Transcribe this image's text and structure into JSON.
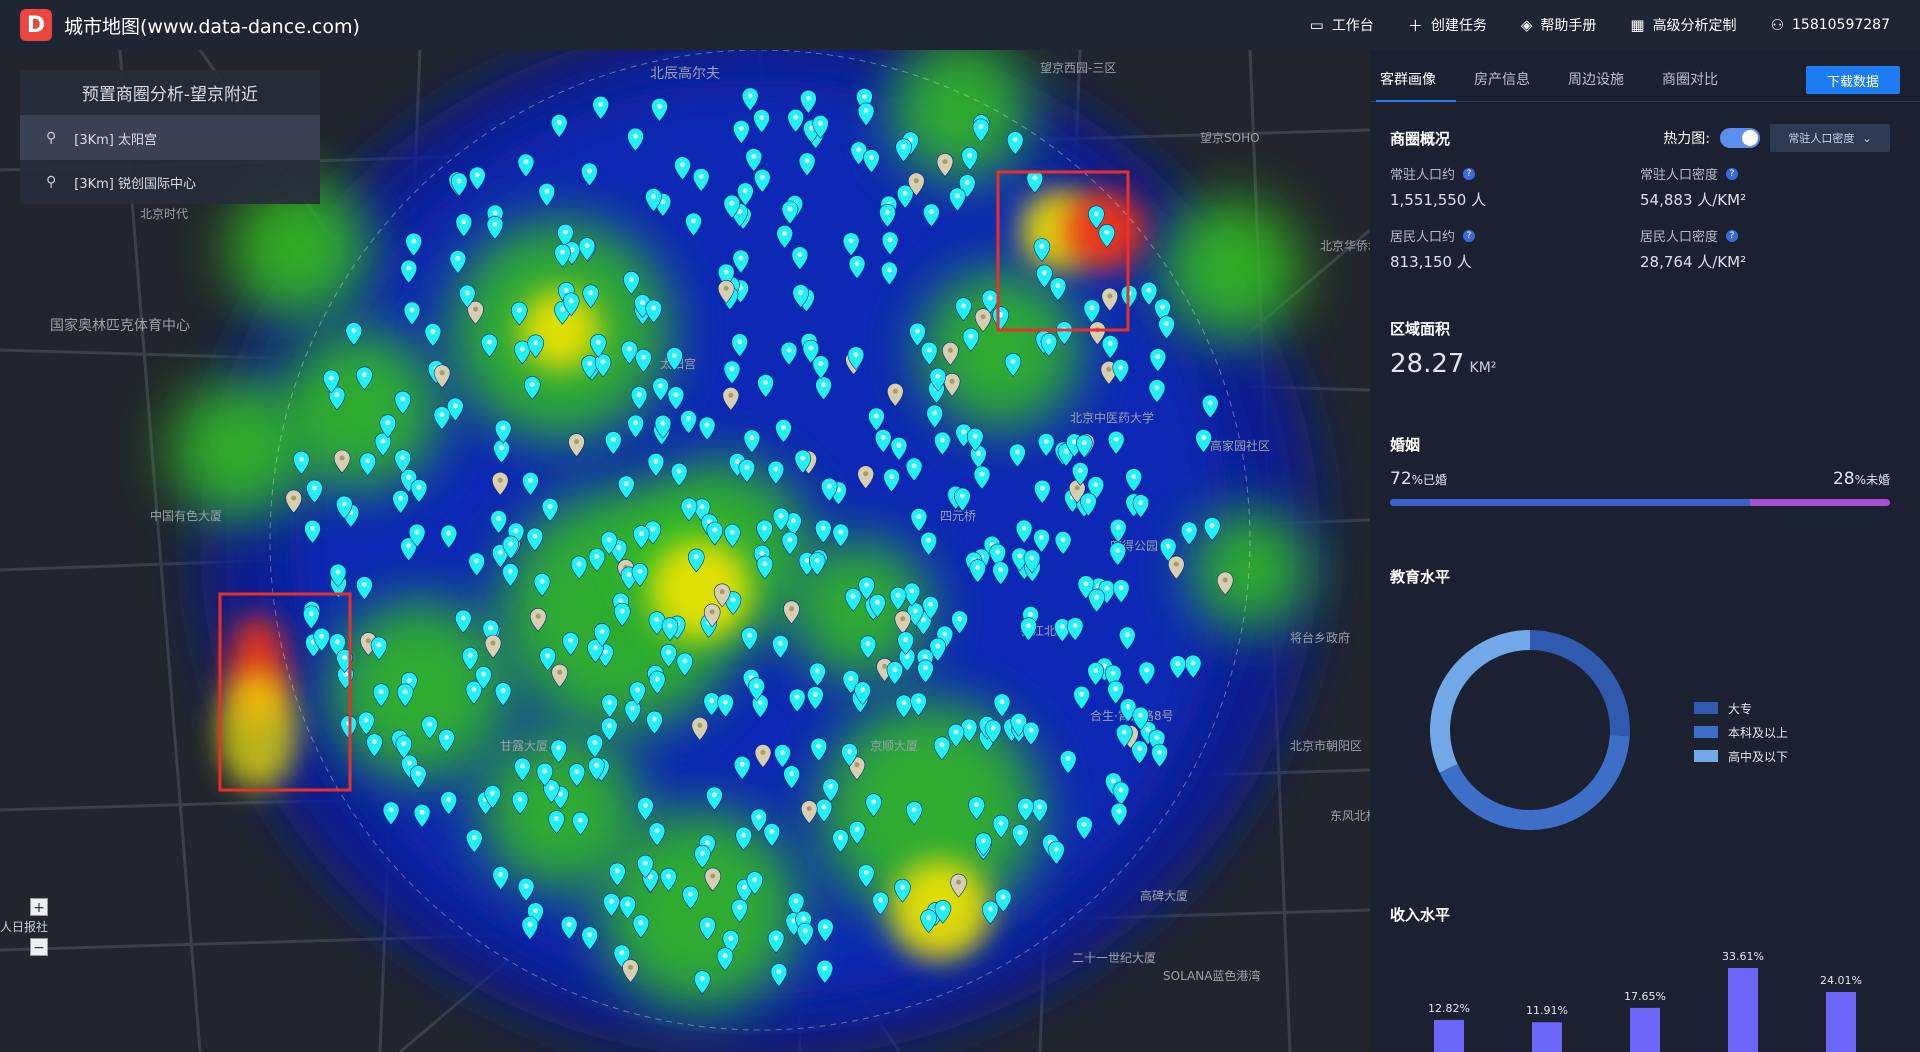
{
  "app": {
    "logo_letter": "D",
    "title": "城市地图(www.data-dance.com)"
  },
  "nav": [
    {
      "icon": "monitor-icon",
      "label": "工作台"
    },
    {
      "icon": "plus-icon",
      "label": "创建任务"
    },
    {
      "icon": "layers-icon",
      "label": "帮助手册"
    },
    {
      "icon": "calendar-icon",
      "label": "高级分析定制"
    },
    {
      "icon": "user-icon",
      "label": "15810597287"
    }
  ],
  "preset": {
    "title": "预置商圈分析-望京附近",
    "items": [
      {
        "label": "[3Km] 太阳宫",
        "active": true
      },
      {
        "label": "[3Km] 锐创国际中心",
        "active": false
      }
    ]
  },
  "map_labels": [
    "北辰高尔夫",
    "望京西园-三区",
    "望京SOHO",
    "国家奥林匹克体育中心",
    "太阳宫",
    "四元桥",
    "京顺大厦",
    "合生·霄云路8号",
    "高家园社区",
    "将台乡政府",
    "北京市朝阳区",
    "二十一世纪大厦",
    "SOLANA蓝色港湾",
    "高碑大厦",
    "东风北桥",
    "四得公园",
    "北京中医药大学",
    "香江北路",
    "中国有色大厦",
    "北京时代",
    "甘露大厦",
    "北京华侨城"
  ],
  "zoom": {
    "plus": "+",
    "minus": "−",
    "scale_label": "人日报社"
  },
  "tabs": [
    "客群画像",
    "房产信息",
    "周边设施",
    "商圈对比"
  ],
  "download_label": "下载数据",
  "overview": {
    "title": "商圈概况",
    "heat_label": "热力图:",
    "heat_on": true,
    "heat_select": "常驻人口密度",
    "stats": [
      {
        "label": "常驻人口约",
        "value": "1,551,550 人"
      },
      {
        "label": "常驻人口密度",
        "value": "54,883 人/KM²"
      },
      {
        "label": "居民人口约",
        "value": "813,150 人"
      },
      {
        "label": "居民人口密度",
        "value": "28,764 人/KM²"
      }
    ]
  },
  "area": {
    "title": "区域面积",
    "value": "28.27",
    "unit": "KM²"
  },
  "marriage": {
    "title": "婚姻",
    "married_pct": "72",
    "married_label": "%已婚",
    "single_pct": "28",
    "single_label": "%未婚",
    "married_fraction": 0.72
  },
  "education": {
    "title": "教育水平",
    "items": [
      {
        "name": "大专",
        "share": 0.26,
        "color": "#2f5aad"
      },
      {
        "name": "本科及以上",
        "share": 0.42,
        "color": "#3d6fc9"
      },
      {
        "name": "高中及以下",
        "share": 0.32,
        "color": "#73a8e8"
      }
    ]
  },
  "income": {
    "title": "收入水平",
    "chart_data": {
      "type": "bar",
      "values": [
        12.82,
        11.91,
        17.65,
        33.61,
        24.01
      ],
      "labels": [
        "12.82%",
        "11.91%",
        "17.65%",
        "33.61%",
        "24.01%"
      ],
      "color": "#6b66f7"
    }
  },
  "colors": {
    "accent": "#1e7cf2",
    "highlight_box": "#e8302a",
    "poi": "#22f0f5"
  }
}
